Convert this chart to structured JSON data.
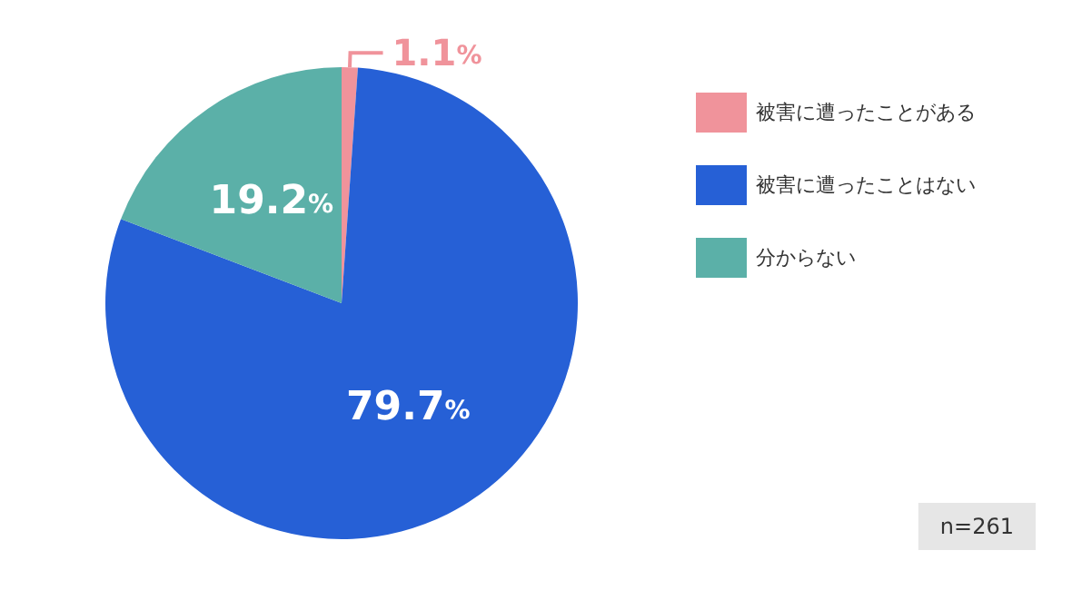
{
  "chart_data": {
    "type": "pie",
    "categories": [
      "被害に遭ったことがある",
      "被害に遭ったことはない",
      "分からない"
    ],
    "values": [
      1.1,
      79.7,
      19.2
    ],
    "colors": [
      "#f0939b",
      "#2660d6",
      "#5bb0a8"
    ],
    "value_labels": [
      "1.1%",
      "79.7%",
      "19.2%"
    ],
    "legend": "top right",
    "annotations": [
      "n=261"
    ]
  }
}
